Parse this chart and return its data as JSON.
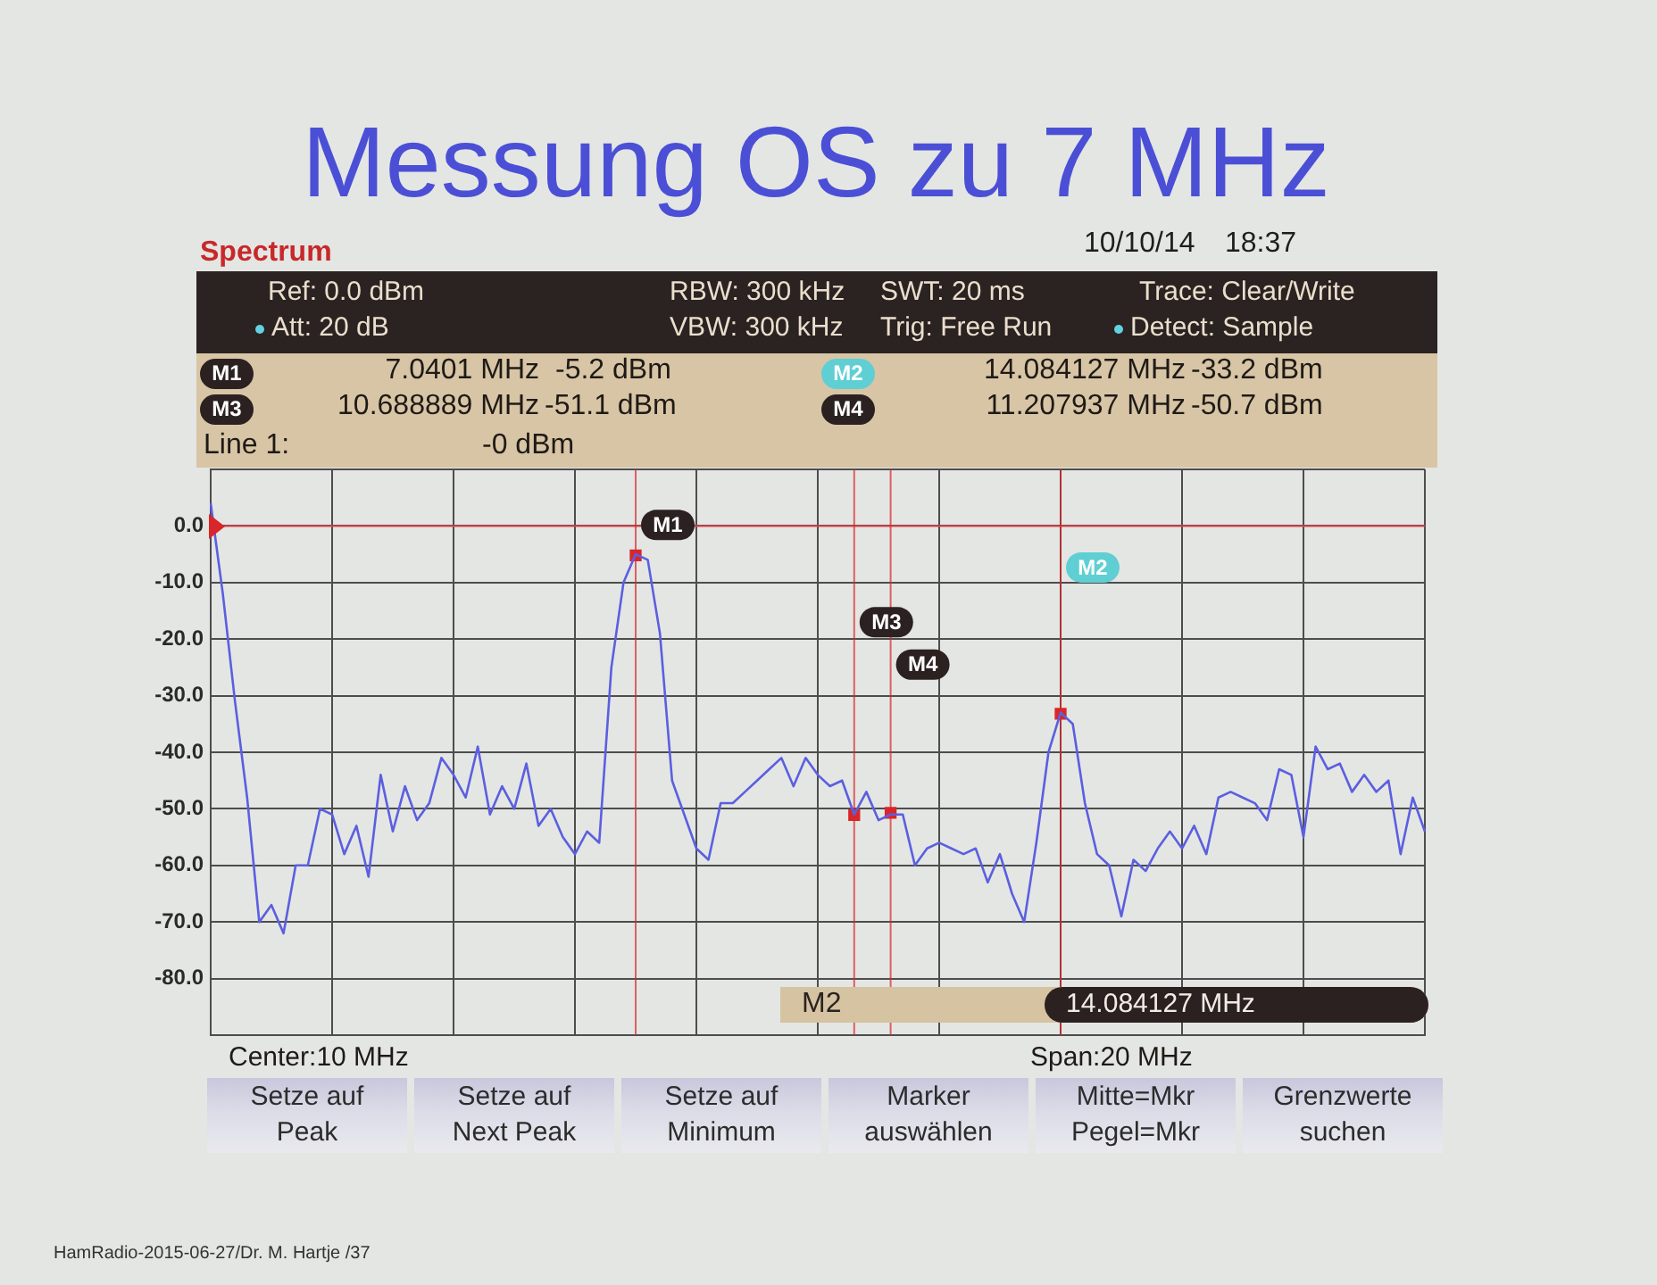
{
  "chart_data": {
    "type": "line",
    "title": "Messung OS zu 7 MHz",
    "subtitle": "Spectrum",
    "categories": [
      null,
      null,
      null,
      null,
      null,
      null,
      null,
      null,
      null,
      null,
      null,
      null,
      null,
      null,
      null,
      null,
      null,
      null,
      null,
      null,
      null,
      null,
      null,
      null,
      null,
      null,
      null,
      null,
      null,
      null,
      null,
      null,
      null,
      null,
      null,
      null,
      null,
      null,
      null,
      null,
      null,
      null,
      null,
      null,
      null,
      null,
      null,
      null,
      null,
      null,
      null,
      null,
      null,
      null,
      null,
      null,
      null,
      null,
      null,
      null,
      null,
      null,
      null,
      null,
      null,
      null,
      null,
      null,
      null,
      null,
      null,
      null,
      null,
      null,
      null,
      null,
      null,
      null,
      null,
      null,
      null,
      null,
      null,
      null,
      null,
      null,
      null,
      null,
      null,
      null,
      null,
      null,
      null,
      null,
      null,
      null,
      null,
      null,
      null,
      null,
      null
    ],
    "series": [
      {
        "color": "#5b5fe0",
        "values": [
          4,
          -12,
          -31,
          -48,
          -70,
          -67,
          -72,
          -60,
          -60,
          -50,
          -51,
          -58,
          -53,
          -62,
          -44,
          -54,
          -46,
          -52,
          -49,
          -41,
          -44,
          -48,
          -39,
          -51,
          -46,
          -50,
          -42,
          -53,
          -50,
          -55,
          -58,
          -54,
          -56,
          -25,
          -10,
          -5,
          -6,
          -19,
          -45,
          -51,
          -57,
          -59,
          -49,
          -49,
          -47,
          -45,
          -43,
          -41,
          -46,
          -41,
          -44,
          -46,
          -45,
          -51,
          -47,
          -52,
          -51,
          -51,
          -60,
          -57,
          -56,
          -57,
          -58,
          -57,
          -63,
          -58,
          -65,
          -70,
          -56,
          -40,
          -33,
          -35,
          -49,
          -58,
          -60,
          -69,
          -59,
          -61,
          -57,
          -54,
          -57,
          -53,
          -58,
          -48,
          -47,
          -48,
          -49,
          -52,
          -43,
          -44,
          -55,
          -39,
          -43,
          -42,
          -47,
          -44,
          -47,
          -45,
          -58,
          -48,
          -54
        ]
      },
      {
        "type": "scatter",
        "color": "#d8262a",
        "marker": "square",
        "values": [
          null,
          null,
          null,
          null,
          null,
          null,
          null,
          null,
          null,
          null,
          null,
          null,
          null,
          null,
          null,
          null,
          null,
          null,
          null,
          null,
          null,
          null,
          null,
          null,
          null,
          null,
          null,
          null,
          null,
          null,
          null,
          null,
          null,
          null,
          null,
          -5.2,
          null,
          null,
          null,
          null,
          null,
          null,
          null,
          null,
          null,
          null,
          null,
          null,
          null,
          null,
          null,
          null,
          null,
          -51.1,
          null,
          null,
          -50.7,
          null,
          null,
          null,
          null,
          null,
          null,
          null,
          null,
          null,
          null,
          null,
          null,
          null,
          -33.2,
          null,
          null,
          null,
          null,
          null,
          null,
          null,
          null,
          null,
          null,
          null,
          null,
          null,
          null,
          null,
          null,
          null,
          null,
          null,
          null,
          null,
          null,
          null,
          null,
          null,
          null,
          null,
          null,
          null,
          null
        ]
      }
    ],
    "ylim": [
      -90,
      10
    ],
    "yticks": [
      {
        "value": -90,
        "label": null
      },
      {
        "value": -80,
        "label": "-80.0"
      },
      {
        "value": -70,
        "label": "-70.0"
      },
      {
        "value": -60,
        "label": "-60.0"
      },
      {
        "value": -50,
        "label": "-50.0"
      },
      {
        "value": -40,
        "label": "-40.0"
      },
      {
        "value": -30,
        "label": "-30.0"
      },
      {
        "value": -20,
        "label": "-20.0"
      },
      {
        "value": -10,
        "label": "-10.0"
      },
      {
        "value": 0,
        "label": "0.0"
      },
      {
        "value": 10,
        "label": null
      }
    ],
    "tick_labels": "y",
    "grid": true,
    "marker": "none",
    "ref_lines": [
      {
        "axis": "y",
        "value": 0,
        "color": "#d8434a"
      }
    ],
    "annotations": [
      "10/10/14",
      "18:37",
      "Ref: 0.0 dBm",
      "Att: 20 dB",
      "RBW: 300 kHz",
      "VBW: 300 kHz",
      "SWT: 20 ms",
      "Trig: Free Run",
      "Trace: Clear/Write",
      "Detect: Sample",
      "M1",
      "7.0401 MHz",
      "-5.2 dBm",
      "M2",
      "14.084127 MHz",
      "-33.2 dBm",
      "M3",
      "10.688889 MHz",
      "-51.1 dBm",
      "M4",
      "11.207937 MHz",
      "-50.7 dBm",
      "Line 1:",
      "-0 dBm",
      "M2",
      "14.084127 MHz",
      "Center:10 MHz",
      "Span:20 MHz",
      "Setze auf\nPeak",
      "Setze auf\nNext Peak",
      "Setze auf\nMinimum",
      "Marker\nauswählen",
      "Mitte=Mkr\nPegel=Mkr",
      "Grenzwerte\nsuchen",
      "HamRadio-2015-06-27/Dr. M. Hartje /37"
    ]
  }
}
